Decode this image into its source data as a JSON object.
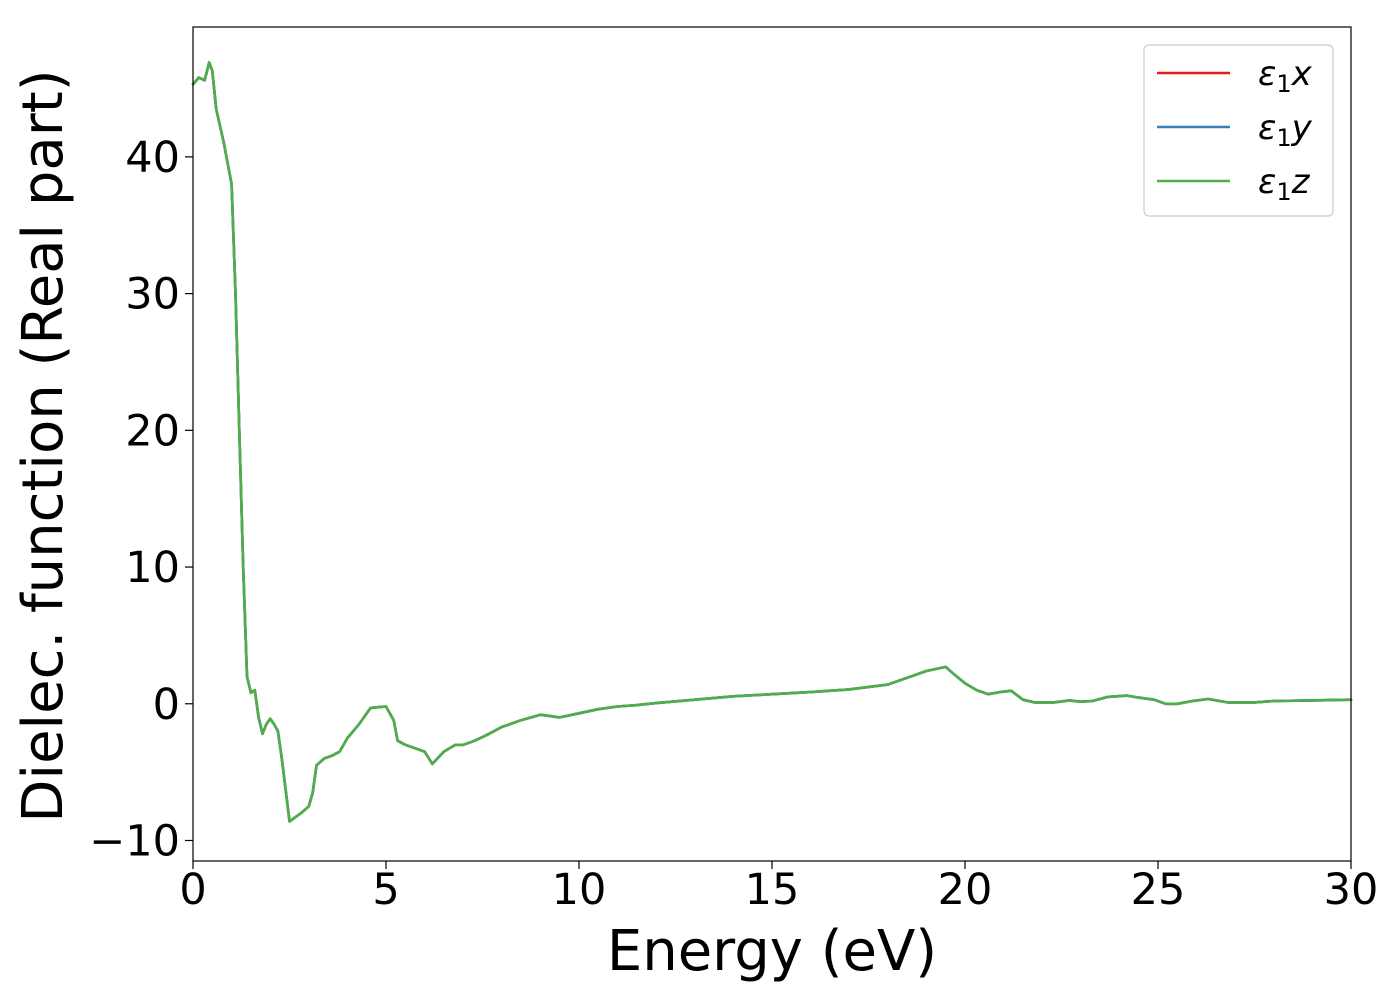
{
  "chart_data": {
    "type": "line",
    "title": "",
    "xlabel": "Energy (eV)",
    "ylabel": "Dielec. function (Real part)",
    "xlim": [
      0,
      30
    ],
    "ylim": [
      -11.5,
      49.5
    ],
    "xticks": [
      0,
      5,
      10,
      15,
      20,
      25,
      30
    ],
    "yticks": [
      -10,
      0,
      10,
      20,
      30,
      40
    ],
    "xtick_labels": [
      "0",
      "5",
      "10",
      "15",
      "20",
      "25",
      "30"
    ],
    "ytick_labels": [
      "−10",
      "0",
      "10",
      "20",
      "30",
      "40"
    ],
    "grid": false,
    "legend_position": "top-right",
    "x": [
      0,
      0.15,
      0.3,
      0.42,
      0.5,
      0.6,
      0.8,
      1.0,
      1.1,
      1.2,
      1.3,
      1.4,
      1.5,
      1.6,
      1.7,
      1.8,
      1.9,
      2.0,
      2.1,
      2.2,
      2.3,
      2.5,
      2.8,
      3.0,
      3.1,
      3.2,
      3.4,
      3.6,
      3.8,
      4.0,
      4.3,
      4.6,
      5.0,
      5.2,
      5.3,
      5.5,
      5.8,
      6.0,
      6.2,
      6.5,
      6.8,
      7.0,
      7.3,
      7.6,
      8.0,
      8.5,
      9.0,
      9.5,
      10.0,
      10.5,
      11.0,
      11.5,
      12.0,
      13.0,
      14.0,
      15.0,
      16.0,
      17.0,
      18.0,
      18.5,
      19.0,
      19.5,
      19.7,
      20.0,
      20.3,
      20.6,
      20.9,
      21.2,
      21.5,
      21.8,
      22.3,
      22.7,
      23.0,
      23.3,
      23.7,
      24.2,
      24.5,
      24.9,
      25.2,
      25.5,
      25.9,
      26.3,
      26.8,
      27.5,
      28.0,
      29.0,
      30.0
    ],
    "series": [
      {
        "name": "ε₁x",
        "color": "#e41a1c",
        "values": [
          45.3,
          45.8,
          45.6,
          46.9,
          46.3,
          43.5,
          41.0,
          38.0,
          30.0,
          20.0,
          10.0,
          2.0,
          0.8,
          1.0,
          -1.0,
          -2.2,
          -1.5,
          -1.1,
          -1.5,
          -2.0,
          -4.0,
          -8.6,
          -8.0,
          -7.5,
          -6.5,
          -4.5,
          -4.0,
          -3.8,
          -3.5,
          -2.5,
          -1.5,
          -0.3,
          -0.2,
          -1.2,
          -2.7,
          -3.0,
          -3.3,
          -3.5,
          -4.4,
          -3.5,
          -3.0,
          -3.0,
          -2.7,
          -2.3,
          -1.7,
          -1.2,
          -0.8,
          -1.0,
          -0.7,
          -0.4,
          -0.2,
          -0.1,
          0.05,
          0.3,
          0.55,
          0.7,
          0.85,
          1.05,
          1.4,
          1.9,
          2.4,
          2.7,
          2.2,
          1.5,
          1.0,
          0.7,
          0.85,
          0.95,
          0.3,
          0.1,
          0.1,
          0.25,
          0.15,
          0.2,
          0.5,
          0.6,
          0.45,
          0.3,
          0.0,
          0.0,
          0.2,
          0.35,
          0.1,
          0.1,
          0.2,
          0.25,
          0.3
        ]
      },
      {
        "name": "ε₁y",
        "color": "#377eb8",
        "values": [
          45.3,
          45.8,
          45.6,
          46.9,
          46.3,
          43.5,
          41.0,
          38.0,
          30.0,
          20.0,
          10.0,
          2.0,
          0.8,
          1.0,
          -1.0,
          -2.2,
          -1.5,
          -1.1,
          -1.5,
          -2.0,
          -4.0,
          -8.6,
          -8.0,
          -7.5,
          -6.5,
          -4.5,
          -4.0,
          -3.8,
          -3.5,
          -2.5,
          -1.5,
          -0.3,
          -0.2,
          -1.2,
          -2.7,
          -3.0,
          -3.3,
          -3.5,
          -4.4,
          -3.5,
          -3.0,
          -3.0,
          -2.7,
          -2.3,
          -1.7,
          -1.2,
          -0.8,
          -1.0,
          -0.7,
          -0.4,
          -0.2,
          -0.1,
          0.05,
          0.3,
          0.55,
          0.7,
          0.85,
          1.05,
          1.4,
          1.9,
          2.4,
          2.7,
          2.2,
          1.5,
          1.0,
          0.7,
          0.85,
          0.95,
          0.3,
          0.1,
          0.1,
          0.25,
          0.15,
          0.2,
          0.5,
          0.6,
          0.45,
          0.3,
          0.0,
          0.0,
          0.2,
          0.35,
          0.1,
          0.1,
          0.2,
          0.25,
          0.3
        ]
      },
      {
        "name": "ε₁z",
        "color": "#4daf4a",
        "values": [
          45.3,
          45.8,
          45.6,
          46.9,
          46.3,
          43.5,
          41.0,
          38.0,
          30.0,
          20.0,
          10.0,
          2.0,
          0.8,
          1.0,
          -1.0,
          -2.2,
          -1.5,
          -1.1,
          -1.5,
          -2.0,
          -4.0,
          -8.6,
          -8.0,
          -7.5,
          -6.5,
          -4.5,
          -4.0,
          -3.8,
          -3.5,
          -2.5,
          -1.5,
          -0.3,
          -0.2,
          -1.2,
          -2.7,
          -3.0,
          -3.3,
          -3.5,
          -4.4,
          -3.5,
          -3.0,
          -3.0,
          -2.7,
          -2.3,
          -1.7,
          -1.2,
          -0.8,
          -1.0,
          -0.7,
          -0.4,
          -0.2,
          -0.1,
          0.05,
          0.3,
          0.55,
          0.7,
          0.85,
          1.05,
          1.4,
          1.9,
          2.4,
          2.7,
          2.2,
          1.5,
          1.0,
          0.7,
          0.85,
          0.95,
          0.3,
          0.1,
          0.1,
          0.25,
          0.15,
          0.2,
          0.5,
          0.6,
          0.45,
          0.3,
          0.0,
          0.0,
          0.2,
          0.35,
          0.1,
          0.1,
          0.2,
          0.25,
          0.3
        ]
      }
    ],
    "legend": [
      {
        "symbol": "ε",
        "sub": "1",
        "axis": "x"
      },
      {
        "symbol": "ε",
        "sub": "1",
        "axis": "y"
      },
      {
        "symbol": "ε",
        "sub": "1",
        "axis": "z"
      }
    ]
  }
}
